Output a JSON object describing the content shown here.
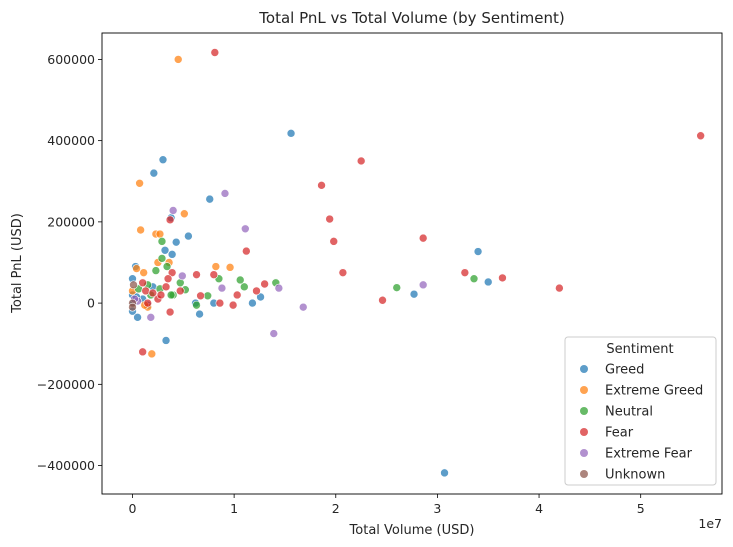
{
  "chart_data": {
    "type": "scatter",
    "title": "Total PnL vs Total Volume (by Sentiment)",
    "xlabel": "Total Volume (USD)",
    "ylabel": "Total PnL (USD)",
    "x_offset_text": "1e7",
    "x_scale": 10000000,
    "xlim": [
      -3000000,
      58000000
    ],
    "ylim": [
      -470000,
      665000
    ],
    "x_ticks": [
      0,
      10000000,
      20000000,
      30000000,
      40000000,
      50000000
    ],
    "x_tick_labels": [
      "0",
      "1",
      "2",
      "3",
      "4",
      "5"
    ],
    "y_ticks": [
      -400000,
      -200000,
      0,
      200000,
      400000,
      600000
    ],
    "y_tick_labels": [
      "−400000",
      "−200000",
      "0",
      "200000",
      "400000",
      "600000"
    ],
    "grid": false,
    "legend": {
      "title": "Sentiment",
      "position": "lower-right"
    },
    "series": [
      {
        "name": "Greed",
        "color": "#1f77b4",
        "points": [
          [
            15600000,
            418000
          ],
          [
            3000000,
            353000
          ],
          [
            2100000,
            320000
          ],
          [
            7600000,
            256000
          ],
          [
            4300000,
            150000
          ],
          [
            5500000,
            165000
          ],
          [
            3900000,
            120000
          ],
          [
            34000000,
            127000
          ],
          [
            35000000,
            52000
          ],
          [
            27700000,
            22000
          ],
          [
            12600000,
            15000
          ],
          [
            11800000,
            0
          ],
          [
            6200000,
            0
          ],
          [
            6600000,
            -27000
          ],
          [
            3300000,
            -92000
          ],
          [
            30700000,
            -418000
          ],
          [
            0,
            60000
          ],
          [
            300000,
            90000
          ],
          [
            0,
            20000
          ],
          [
            0,
            -20000
          ],
          [
            500000,
            -35000
          ],
          [
            1000000,
            10000
          ],
          [
            1500000,
            -5000
          ],
          [
            8000000,
            0
          ],
          [
            2000000,
            40000
          ],
          [
            3200000,
            130000
          ],
          [
            3800000,
            210000
          ],
          [
            100000,
            0
          ],
          [
            400000,
            15000
          ]
        ]
      },
      {
        "name": "Extreme Greed",
        "color": "#ff7f0e",
        "points": [
          [
            4500000,
            600000
          ],
          [
            700000,
            295000
          ],
          [
            800000,
            180000
          ],
          [
            5100000,
            220000
          ],
          [
            2300000,
            170000
          ],
          [
            2700000,
            170000
          ],
          [
            9600000,
            88000
          ],
          [
            8200000,
            90000
          ],
          [
            3600000,
            100000
          ],
          [
            1100000,
            75000
          ],
          [
            1900000,
            -125000
          ],
          [
            1500000,
            -10000
          ],
          [
            400000,
            85000
          ],
          [
            2500000,
            100000
          ],
          [
            1200000,
            -5000
          ],
          [
            0,
            30000
          ]
        ]
      },
      {
        "name": "Neutral",
        "color": "#2ca02c",
        "points": [
          [
            26000000,
            38000
          ],
          [
            33600000,
            60000
          ],
          [
            14100000,
            50000
          ],
          [
            10600000,
            57000
          ],
          [
            11000000,
            40000
          ],
          [
            8500000,
            60000
          ],
          [
            7400000,
            18000
          ],
          [
            5200000,
            33000
          ],
          [
            6300000,
            -5000
          ],
          [
            3400000,
            90000
          ],
          [
            2900000,
            110000
          ],
          [
            2900000,
            152000
          ],
          [
            2300000,
            80000
          ],
          [
            1800000,
            20000
          ],
          [
            4000000,
            20000
          ],
          [
            2700000,
            35000
          ],
          [
            4700000,
            50000
          ],
          [
            3800000,
            20000
          ],
          [
            1500000,
            45000
          ],
          [
            600000,
            35000
          ]
        ]
      },
      {
        "name": "Fear",
        "color": "#d62728",
        "points": [
          [
            8100000,
            617000
          ],
          [
            55900000,
            412000
          ],
          [
            22500000,
            350000
          ],
          [
            18600000,
            290000
          ],
          [
            19400000,
            207000
          ],
          [
            19800000,
            152000
          ],
          [
            28600000,
            160000
          ],
          [
            11200000,
            128000
          ],
          [
            3700000,
            205000
          ],
          [
            20700000,
            75000
          ],
          [
            32700000,
            75000
          ],
          [
            36400000,
            62000
          ],
          [
            42000000,
            37000
          ],
          [
            24600000,
            7000
          ],
          [
            13000000,
            47000
          ],
          [
            12200000,
            30000
          ],
          [
            10300000,
            20000
          ],
          [
            9900000,
            -5000
          ],
          [
            8600000,
            0
          ],
          [
            8000000,
            70000
          ],
          [
            6700000,
            18000
          ],
          [
            6300000,
            70000
          ],
          [
            4700000,
            30000
          ],
          [
            3900000,
            75000
          ],
          [
            3700000,
            -22000
          ],
          [
            1000000,
            -120000
          ],
          [
            3300000,
            40000
          ],
          [
            3500000,
            60000
          ],
          [
            2500000,
            10000
          ],
          [
            1300000,
            30000
          ],
          [
            1000000,
            50000
          ],
          [
            2000000,
            25000
          ],
          [
            2800000,
            20000
          ],
          [
            1500000,
            0
          ]
        ]
      },
      {
        "name": "Extreme Fear",
        "color": "#9467bd",
        "points": [
          [
            9100000,
            270000
          ],
          [
            4000000,
            228000
          ],
          [
            11100000,
            183000
          ],
          [
            28600000,
            45000
          ],
          [
            14400000,
            37000
          ],
          [
            16800000,
            -10000
          ],
          [
            13900000,
            -75000
          ],
          [
            8800000,
            37000
          ],
          [
            4900000,
            67000
          ],
          [
            1800000,
            -35000
          ],
          [
            500000,
            5000
          ],
          [
            200000,
            10000
          ]
        ]
      },
      {
        "name": "Unknown",
        "color": "#8c564b",
        "points": [
          [
            0,
            0
          ],
          [
            100000,
            45000
          ],
          [
            0,
            -10000
          ]
        ]
      }
    ]
  }
}
